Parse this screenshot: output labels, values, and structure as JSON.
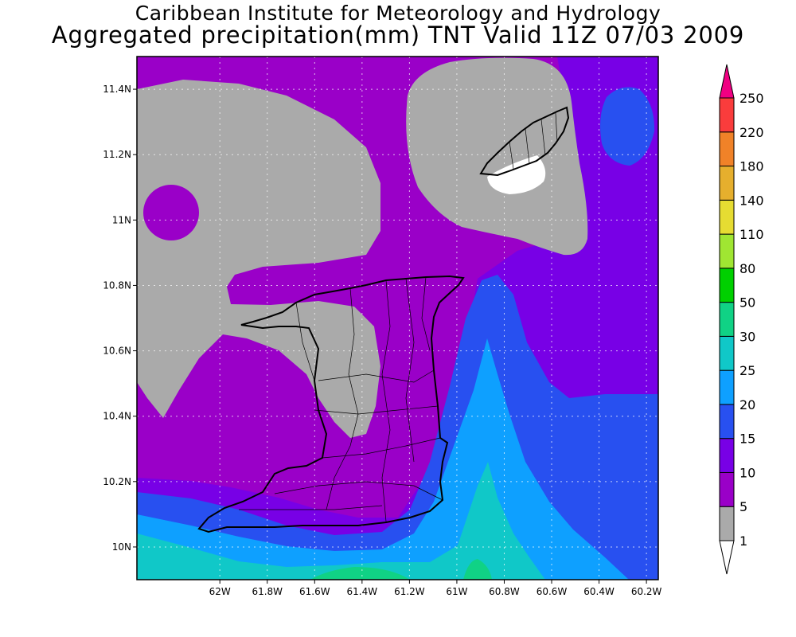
{
  "title": {
    "line1": "Caribbean Institute for Meteorology and Hydrology",
    "line2": "Aggregated precipitation(mm) TNT Valid 11Z 07/03 2009"
  },
  "map": {
    "lon_range": [
      -62.35,
      -60.15
    ],
    "lat_range": [
      9.9,
      11.5
    ],
    "lon_ticks": [
      "62W",
      "61.8W",
      "61.6W",
      "61.4W",
      "61.2W",
      "61W",
      "60.8W",
      "60.6W",
      "60.4W",
      "60.2W"
    ],
    "lat_ticks": [
      "10N",
      "10.2N",
      "10.4N",
      "10.6N",
      "10.8N",
      "11N",
      "11.2N",
      "11.4N"
    ],
    "grid": true
  },
  "colorbar": {
    "levels": [
      "1",
      "5",
      "10",
      "15",
      "20",
      "25",
      "30",
      "50",
      "80",
      "110",
      "140",
      "180",
      "220",
      "250"
    ],
    "colors": [
      "#ffffff",
      "#aaaaaa",
      "#9a00c8",
      "#7800e6",
      "#2850f0",
      "#0ea0ff",
      "#10c8c8",
      "#10d285",
      "#00d000",
      "#a0e632",
      "#e6dc32",
      "#e6af2d",
      "#f08228",
      "#fa3c3c",
      "#f00082"
    ]
  }
}
